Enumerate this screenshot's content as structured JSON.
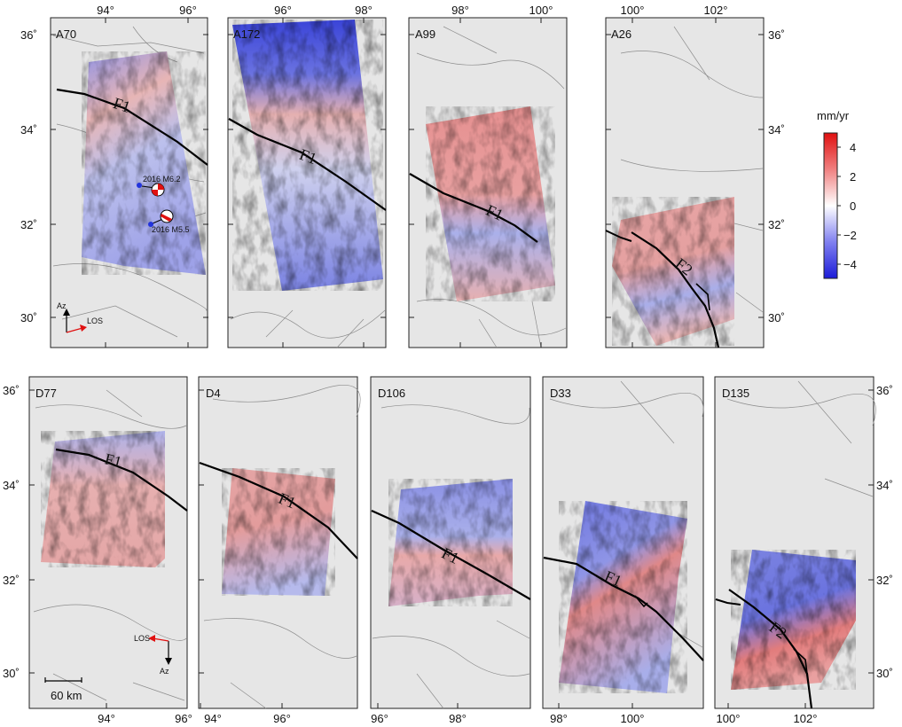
{
  "colorbar": {
    "unit": "mm/yr",
    "ticks": [
      "4",
      "2",
      "0",
      "−2",
      "−4"
    ],
    "range": [
      -5,
      5
    ],
    "colors": {
      "high": "#e01010",
      "mid": "#ffffff",
      "low": "#1c1cd8"
    }
  },
  "top_row": {
    "panels": [
      {
        "id": "A70",
        "x_ticks": [
          "94°",
          "96°"
        ],
        "fault_labels": [
          "F1"
        ]
      },
      {
        "id": "A172",
        "x_ticks": [
          "96°",
          "98°"
        ],
        "fault_labels": [
          "F1"
        ]
      },
      {
        "id": "A99",
        "x_ticks": [
          "98°",
          "100°"
        ],
        "fault_labels": [
          "F1"
        ]
      },
      {
        "id": "A26",
        "x_ticks": [
          "100°",
          "102°"
        ],
        "fault_labels": [
          "F2"
        ]
      }
    ],
    "y_ticks": [
      "36˚",
      "34˚",
      "32˚",
      "30˚"
    ]
  },
  "bottom_row": {
    "panels": [
      {
        "id": "D77",
        "x_ticks": [
          "94°",
          "96°"
        ],
        "fault_labels": [
          "F1"
        ]
      },
      {
        "id": "D4",
        "x_ticks": [
          "94°",
          "96°"
        ],
        "fault_labels": [
          "F1"
        ]
      },
      {
        "id": "D106",
        "x_ticks": [
          "96°",
          "98°"
        ],
        "fault_labels": [
          "F1"
        ]
      },
      {
        "id": "D33",
        "x_ticks": [
          "98°",
          "100°"
        ],
        "fault_labels": [
          "F1"
        ]
      },
      {
        "id": "D135",
        "x_ticks": [
          "100°",
          "102°"
        ],
        "fault_labels": [
          "F2"
        ]
      }
    ],
    "y_ticks": [
      "36˚",
      "34˚",
      "32˚",
      "30˚"
    ]
  },
  "events": [
    {
      "label": "2016 M6.2"
    },
    {
      "label": "2016 M5.5"
    }
  ],
  "arrows": {
    "ascending": {
      "az": "Az",
      "los": "LOS"
    },
    "descending": {
      "az": "Az",
      "los": "LOS"
    }
  },
  "scale_bar": {
    "label": "60 km"
  }
}
